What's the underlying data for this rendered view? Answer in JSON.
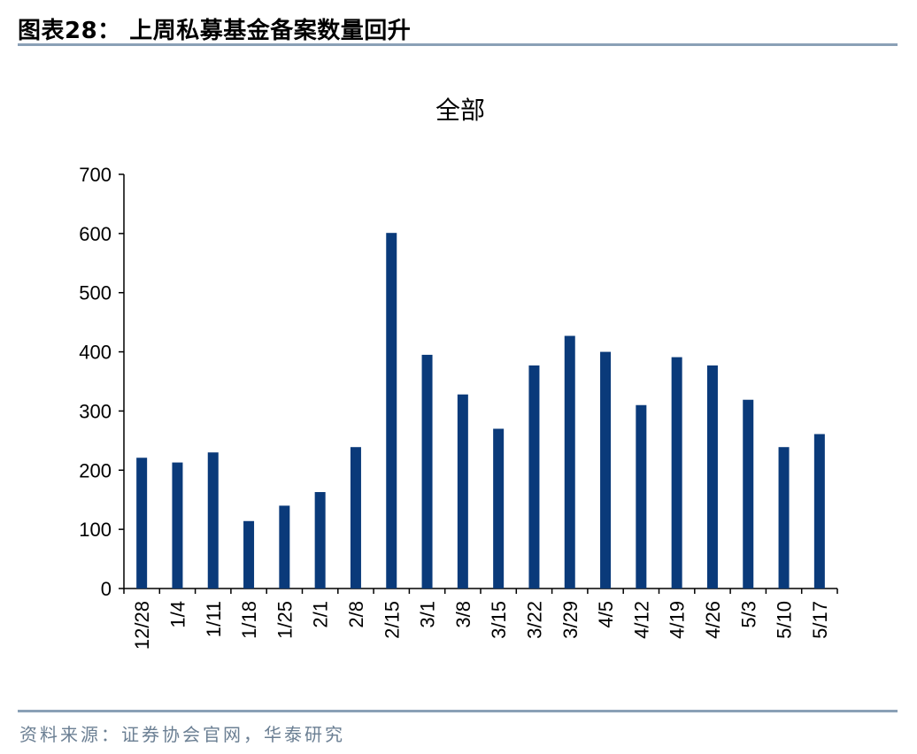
{
  "figure": {
    "title": "图表28： 上周私募基金备案数量回升",
    "source": "资料来源：证券协会官网，华泰研究"
  },
  "colors": {
    "bar": "#0a3a7a",
    "rule": "#8aa0b6",
    "source_text": "#6b7f93"
  },
  "chart_data": {
    "type": "bar",
    "title": "全部",
    "xlabel": "",
    "ylabel": "",
    "categories": [
      "12/28",
      "1/4",
      "1/11",
      "1/18",
      "1/25",
      "2/1",
      "2/8",
      "2/15",
      "3/1",
      "3/8",
      "3/15",
      "3/22",
      "3/29",
      "4/5",
      "4/12",
      "4/19",
      "4/26",
      "5/3",
      "5/10",
      "5/17"
    ],
    "values": [
      221,
      213,
      230,
      114,
      140,
      163,
      239,
      601,
      395,
      328,
      270,
      377,
      427,
      400,
      310,
      391,
      377,
      319,
      239,
      261
    ],
    "ylim": [
      0,
      700
    ],
    "yticks": [
      0,
      100,
      200,
      300,
      400,
      500,
      600,
      700
    ],
    "grid": false,
    "legend": "none"
  }
}
